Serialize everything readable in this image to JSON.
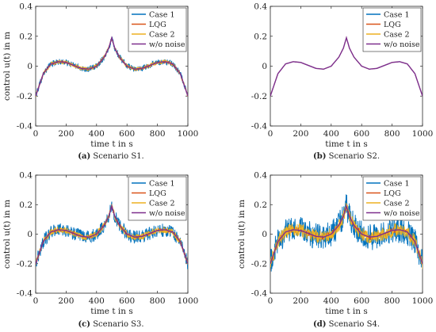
{
  "chart_data": [
    {
      "type": "line",
      "caption_label": "(a)",
      "caption_text": "Scenario S1.",
      "xlabel": "time t in s",
      "ylabel": "control u(t) in m",
      "xlim": [
        0,
        1000
      ],
      "ylim": [
        -0.4,
        0.4
      ],
      "xticks": [
        0,
        200,
        400,
        600,
        800,
        1000
      ],
      "yticks": [
        0.4,
        0.2,
        0,
        -0.2,
        -0.4
      ],
      "legend_position": "top-right",
      "x": [
        0,
        50,
        100,
        150,
        200,
        250,
        300,
        350,
        400,
        450,
        480,
        500,
        520,
        550,
        600,
        650,
        700,
        750,
        800,
        850,
        900,
        950,
        1000
      ],
      "series": [
        {
          "name": "Case 1",
          "color": "#0072BD",
          "noise_amplitude": 0.02
        },
        {
          "name": "LQG",
          "color": "#D95319",
          "noise_amplitude": 0.008
        },
        {
          "name": "Case 2",
          "color": "#EDB120",
          "noise_amplitude": 0.012
        },
        {
          "name": "w/o noise",
          "color": "#7E2F8E",
          "noise_amplitude": 0,
          "values": [
            -0.2,
            -0.05,
            0.015,
            0.03,
            0.025,
            0.005,
            -0.015,
            -0.02,
            0.0,
            0.06,
            0.12,
            0.19,
            0.12,
            0.06,
            0.0,
            -0.02,
            -0.015,
            0.005,
            0.025,
            0.03,
            0.015,
            -0.05,
            -0.2
          ]
        }
      ]
    },
    {
      "type": "line",
      "caption_label": "(b)",
      "caption_text": "Scenario S2.",
      "xlabel": "time t in s",
      "ylabel": "",
      "xlim": [
        0,
        1000
      ],
      "ylim": [
        -0.4,
        0.4
      ],
      "xticks": [
        0,
        200,
        400,
        600,
        800,
        1000
      ],
      "yticks": [
        0.4,
        0.2,
        0,
        -0.2,
        -0.4
      ],
      "legend_position": "top-right",
      "x": [
        0,
        50,
        100,
        150,
        200,
        250,
        300,
        350,
        400,
        450,
        480,
        500,
        520,
        550,
        600,
        650,
        700,
        750,
        800,
        850,
        900,
        950,
        1000
      ],
      "series": [
        {
          "name": "Case 1",
          "color": "#0072BD",
          "noise_amplitude": 0.001
        },
        {
          "name": "LQG",
          "color": "#D95319",
          "noise_amplitude": 0.0005
        },
        {
          "name": "Case 2",
          "color": "#EDB120",
          "noise_amplitude": 0.0005
        },
        {
          "name": "w/o noise",
          "color": "#7E2F8E",
          "noise_amplitude": 0,
          "values": [
            -0.2,
            -0.05,
            0.015,
            0.03,
            0.025,
            0.005,
            -0.015,
            -0.02,
            0.0,
            0.06,
            0.12,
            0.19,
            0.12,
            0.06,
            0.0,
            -0.02,
            -0.015,
            0.005,
            0.025,
            0.03,
            0.015,
            -0.05,
            -0.2
          ]
        }
      ]
    },
    {
      "type": "line",
      "caption_label": "(c)",
      "caption_text": "Scenario S3.",
      "xlabel": "time t in s",
      "ylabel": "control u(t) in m",
      "xlim": [
        0,
        1000
      ],
      "ylim": [
        -0.4,
        0.4
      ],
      "xticks": [
        0,
        200,
        400,
        600,
        800,
        1000
      ],
      "yticks": [
        0.4,
        0.2,
        0,
        -0.2,
        -0.4
      ],
      "legend_position": "top-right",
      "x": [
        0,
        50,
        100,
        150,
        200,
        250,
        300,
        350,
        400,
        450,
        480,
        500,
        520,
        550,
        600,
        650,
        700,
        750,
        800,
        850,
        900,
        950,
        1000
      ],
      "series": [
        {
          "name": "Case 1",
          "color": "#0072BD",
          "noise_amplitude": 0.045
        },
        {
          "name": "LQG",
          "color": "#D95319",
          "noise_amplitude": 0.012
        },
        {
          "name": "Case 2",
          "color": "#EDB120",
          "noise_amplitude": 0.022
        },
        {
          "name": "w/o noise",
          "color": "#7E2F8E",
          "noise_amplitude": 0,
          "values": [
            -0.2,
            -0.05,
            0.015,
            0.03,
            0.025,
            0.005,
            -0.015,
            -0.02,
            0.0,
            0.06,
            0.12,
            0.19,
            0.12,
            0.06,
            0.0,
            -0.02,
            -0.015,
            0.005,
            0.025,
            0.03,
            0.015,
            -0.05,
            -0.2
          ]
        }
      ]
    },
    {
      "type": "line",
      "caption_label": "(d)",
      "caption_text": "Scenario S4.",
      "xlabel": "time t in s",
      "ylabel": "control u(t) in m",
      "xlim": [
        0,
        1000
      ],
      "ylim": [
        -0.4,
        0.4
      ],
      "xticks": [
        0,
        200,
        400,
        600,
        800,
        1000
      ],
      "yticks": [
        0.4,
        0.2,
        0,
        -0.2,
        -0.4
      ],
      "legend_position": "top-right",
      "x": [
        0,
        50,
        100,
        150,
        200,
        250,
        300,
        350,
        400,
        450,
        480,
        500,
        520,
        550,
        600,
        650,
        700,
        750,
        800,
        850,
        900,
        950,
        1000
      ],
      "series": [
        {
          "name": "Case 1",
          "color": "#0072BD",
          "noise_amplitude": 0.09
        },
        {
          "name": "LQG",
          "color": "#D95319",
          "noise_amplitude": 0.02
        },
        {
          "name": "Case 2",
          "color": "#EDB120",
          "noise_amplitude": 0.045
        },
        {
          "name": "w/o noise",
          "color": "#7E2F8E",
          "noise_amplitude": 0,
          "values": [
            -0.2,
            -0.05,
            0.015,
            0.03,
            0.025,
            0.005,
            -0.015,
            -0.02,
            0.0,
            0.06,
            0.12,
            0.19,
            0.12,
            0.06,
            0.0,
            -0.02,
            -0.015,
            0.005,
            0.025,
            0.03,
            0.015,
            -0.05,
            -0.2
          ]
        }
      ]
    }
  ]
}
